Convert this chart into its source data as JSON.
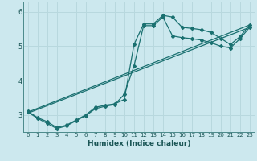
{
  "xlabel": "Humidex (Indice chaleur)",
  "xlim": [
    -0.5,
    23.5
  ],
  "ylim": [
    2.5,
    6.3
  ],
  "yticks": [
    3,
    4,
    5,
    6
  ],
  "xticks": [
    0,
    1,
    2,
    3,
    4,
    5,
    6,
    7,
    8,
    9,
    10,
    11,
    12,
    13,
    14,
    15,
    16,
    17,
    18,
    19,
    20,
    21,
    22,
    23
  ],
  "bg_color": "#cce8ee",
  "grid_color": "#b8d8de",
  "line_color": "#1a7070",
  "line1": {
    "x": [
      0,
      1,
      2,
      3,
      4,
      5,
      6,
      7,
      8,
      9,
      10,
      11,
      12,
      13,
      14,
      15,
      16,
      17,
      18,
      19,
      20,
      21,
      22,
      23
    ],
    "y": [
      3.1,
      2.92,
      2.8,
      2.63,
      2.7,
      2.85,
      3.0,
      3.22,
      3.28,
      3.32,
      3.45,
      5.05,
      5.65,
      5.65,
      5.9,
      5.85,
      5.55,
      5.52,
      5.48,
      5.4,
      5.23,
      5.05,
      5.28,
      5.62
    ]
  },
  "line2": {
    "x": [
      0,
      1,
      2,
      3,
      4,
      5,
      6,
      7,
      8,
      9,
      10,
      11,
      12,
      13,
      14,
      15,
      16,
      17,
      18,
      19,
      20,
      21,
      22,
      23
    ],
    "y": [
      3.08,
      2.9,
      2.75,
      2.6,
      2.68,
      2.83,
      2.98,
      3.18,
      3.25,
      3.3,
      3.6,
      4.42,
      5.6,
      5.6,
      5.85,
      5.3,
      5.25,
      5.22,
      5.18,
      5.1,
      5.0,
      4.95,
      5.22,
      5.55
    ]
  },
  "line3_x": [
    0,
    23
  ],
  "line3_y": [
    3.08,
    5.62
  ],
  "line4_x": [
    0,
    23
  ],
  "line4_y": [
    3.05,
    5.55
  ]
}
